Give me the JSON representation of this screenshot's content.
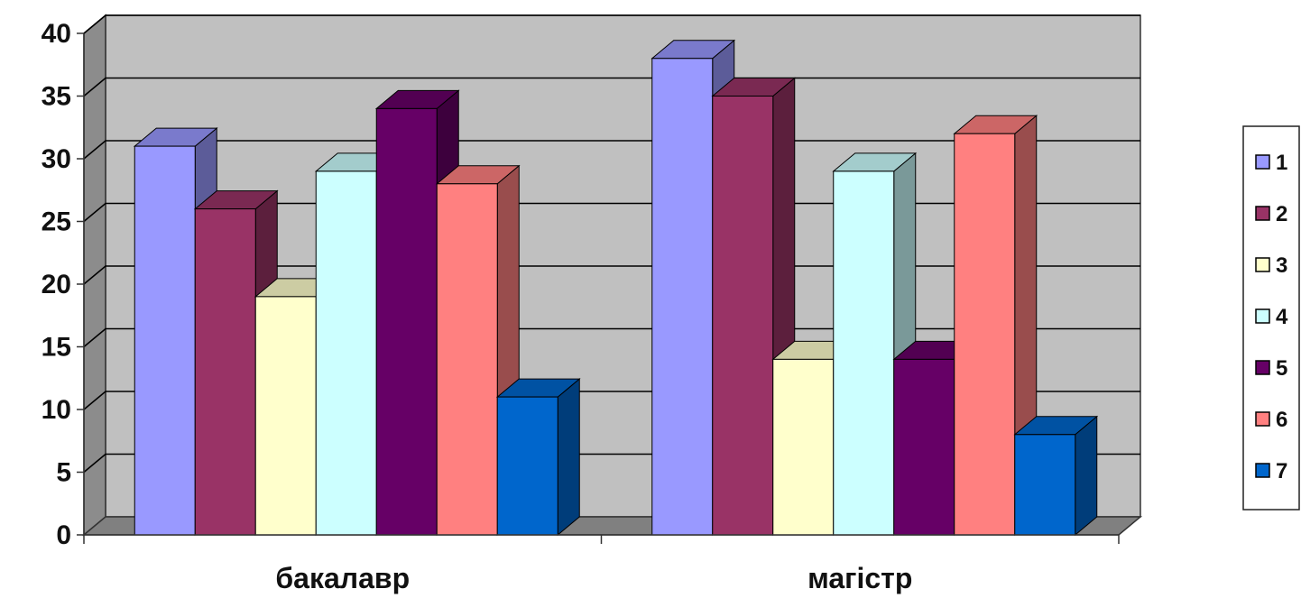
{
  "chart_data": {
    "type": "bar",
    "style": "3d-clustered-column",
    "categories": [
      "бакалавр",
      "магістр"
    ],
    "series": [
      {
        "name": "1",
        "color": "#9999FF",
        "values": [
          31,
          38
        ]
      },
      {
        "name": "2",
        "color": "#993366",
        "values": [
          26,
          35
        ]
      },
      {
        "name": "3",
        "color": "#FFFFCC",
        "values": [
          19,
          14
        ]
      },
      {
        "name": "4",
        "color": "#CCFFFF",
        "values": [
          29,
          29
        ]
      },
      {
        "name": "5",
        "color": "#660066",
        "values": [
          34,
          14
        ]
      },
      {
        "name": "6",
        "color": "#FF8080",
        "values": [
          28,
          32
        ]
      },
      {
        "name": "7",
        "color": "#0066CC",
        "values": [
          11,
          8
        ]
      }
    ],
    "ylim": [
      0,
      40
    ],
    "yticks": [
      "0",
      "5",
      "10",
      "15",
      "20",
      "25",
      "30",
      "35",
      "40"
    ],
    "grid": true,
    "legend": "right",
    "wall_color": "#C0C0C0",
    "floor_color": "#808080"
  }
}
